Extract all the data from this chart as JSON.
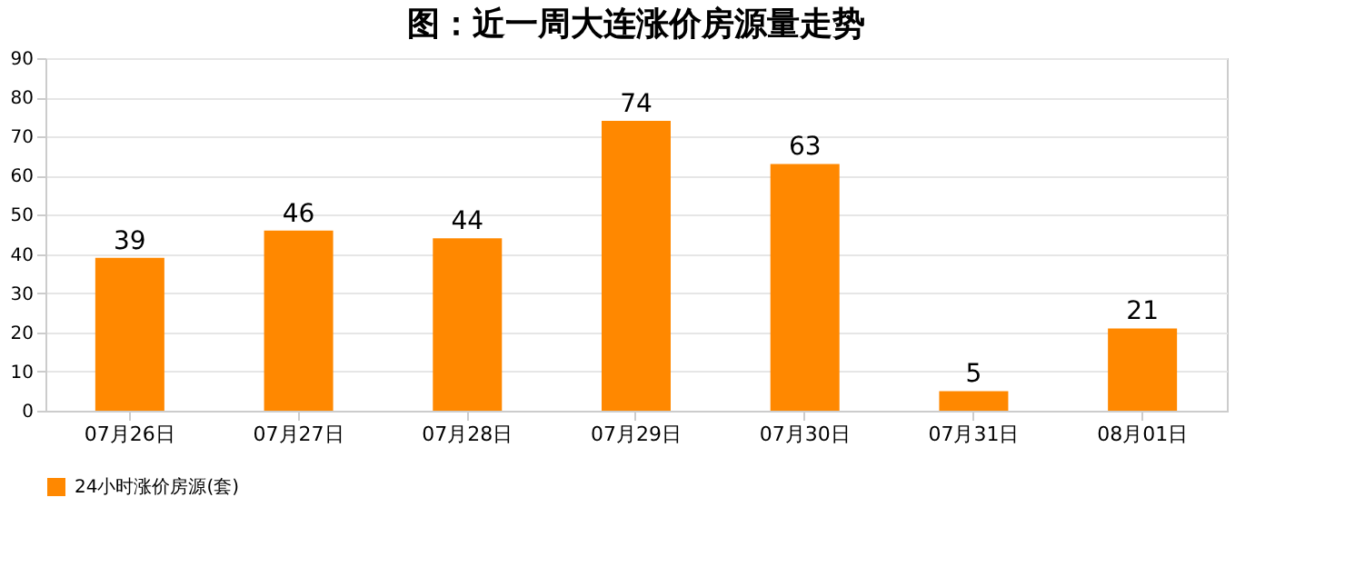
{
  "chart_data": {
    "type": "bar",
    "title": "图：近一周大连涨价房源量走势",
    "categories": [
      "07月26日",
      "07月27日",
      "07月28日",
      "07月29日",
      "07月30日",
      "07月31日",
      "08月01日"
    ],
    "series": [
      {
        "name": "24小时涨价房源(套)",
        "color": "#ff8800",
        "values": [
          39,
          46,
          44,
          74,
          63,
          5,
          21
        ]
      }
    ],
    "ylim": [
      0,
      90
    ],
    "yticks": [
      0,
      10,
      20,
      30,
      40,
      50,
      60,
      70,
      80,
      90
    ],
    "grid": "y",
    "legend": "bottom",
    "data_labels": true
  }
}
